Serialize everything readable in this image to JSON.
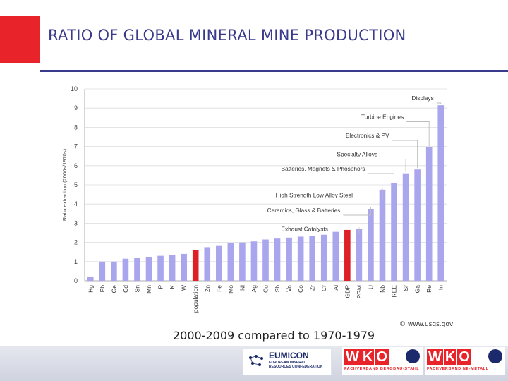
{
  "slide": {
    "title": "RATIO OF GLOBAL MINERAL MINE PRODUCTION",
    "caption": "2000-2009 compared to 1970-1979",
    "credit": "© www.usgs.gov"
  },
  "logos": {
    "eumicon_name": "EUMICON",
    "eumicon_subtitle_1": "EUROPEAN MINERAL",
    "eumicon_subtitle_2": "RESOURCES CONFEDERATION",
    "wko_left_letters": [
      "W",
      "K",
      "O"
    ],
    "wko_left_subtitle": "FACHVERBAND BERGBAU-STAHL",
    "wko_right_letters": [
      "W",
      "K",
      "O"
    ],
    "wko_right_subtitle": "FACHVERBAND NE-METALL"
  },
  "colors": {
    "bar": "#a9a6ee",
    "highlight": "#dd1f26",
    "title": "#3a3a8c",
    "brand_red": "#e8232a",
    "grid": "#dcdcdc"
  },
  "chart_data": {
    "type": "bar",
    "ylabel": "Ratio extraction (2000s/1970s)",
    "ylim": [
      0,
      10
    ],
    "yticks": [
      0,
      1,
      2,
      3,
      4,
      5,
      6,
      7,
      8,
      9,
      10
    ],
    "grid": true,
    "categories": [
      "Hg",
      "Pb",
      "Ge",
      "Cd",
      "Sn",
      "Mn",
      "P",
      "K",
      "W",
      "population",
      "Zn",
      "Fe",
      "Mo",
      "Ni",
      "Ag",
      "Cu",
      "Sb",
      "Va",
      "Co",
      "Zr",
      "Cr",
      "Al",
      "GDP",
      "PGM",
      "U",
      "Nb",
      "REE",
      "Sr",
      "Ga",
      "Re",
      "In"
    ],
    "values": [
      0.2,
      1.0,
      1.0,
      1.15,
      1.2,
      1.25,
      1.3,
      1.35,
      1.4,
      1.6,
      1.75,
      1.85,
      1.95,
      2.0,
      2.05,
      2.15,
      2.2,
      2.25,
      2.3,
      2.35,
      2.4,
      2.55,
      2.65,
      2.7,
      3.75,
      4.75,
      5.1,
      5.6,
      5.8,
      6.95,
      9.15
    ],
    "highlighted": [
      "population",
      "GDP"
    ],
    "annotations": [
      {
        "label": "Displays",
        "target": "In"
      },
      {
        "label": "Turbine Engines",
        "target": "Re"
      },
      {
        "label": "Electronics & PV",
        "target": "Ga"
      },
      {
        "label": "Specialty Alloys",
        "target": "Sr"
      },
      {
        "label": "Batteries, Magnets & Phosphors",
        "target": "REE"
      },
      {
        "label": "High Strength Low Alloy Steel",
        "target": "Nb"
      },
      {
        "label": "Ceramics, Glass & Batteries",
        "target": "U"
      },
      {
        "label": "Exhaust Catalysts",
        "target": "PGM"
      }
    ]
  }
}
